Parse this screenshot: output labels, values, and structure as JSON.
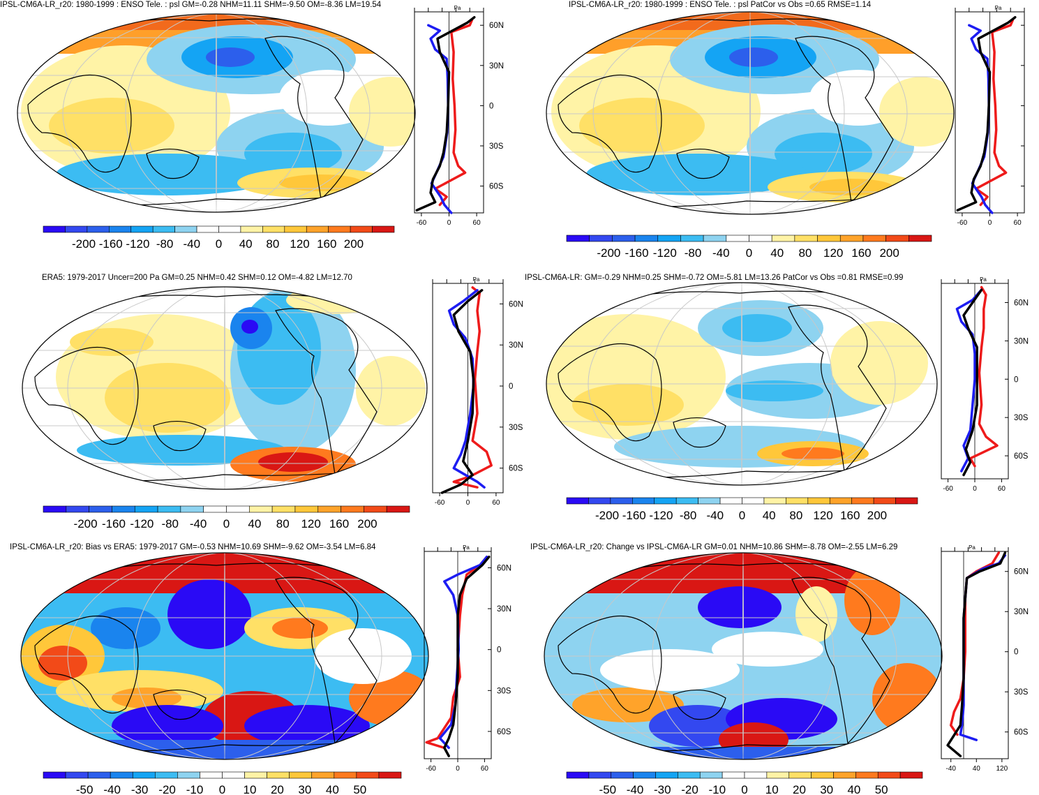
{
  "colors": {
    "psl": [
      "#2a0af5",
      "#3348f0",
      "#2c5fec",
      "#1a84ee",
      "#14a4f4",
      "#3cbcf2",
      "#8ed3f0",
      "#ffffff",
      "#ffffff",
      "#fff3a6",
      "#ffe066",
      "#ffc73a",
      "#ffa32a",
      "#ff7a1e",
      "#f24a18",
      "#d91714"
    ],
    "bias": [
      "#2a0af5",
      "#3348f0",
      "#2c5fec",
      "#1a84ee",
      "#14a4f4",
      "#3cbcf2",
      "#8ed3f0",
      "#ffffff",
      "#ffffff",
      "#fff3a6",
      "#ffe066",
      "#ffc73a",
      "#ffa32a",
      "#ff7a1e",
      "#f24a18",
      "#d91714"
    ],
    "obs_line": "#1d1df2",
    "model_line": "#ee1b1b",
    "mean_line": "#000000"
  },
  "panels": [
    {
      "id": "model-r20",
      "title": "IPSL-CM6A-LR_r20: 1980-1999 : ENSO Tele. : psl GM=-0.28 NHM=11.11 SHM=-9.50 OM=-8.36 LM=19.54",
      "colorbar": {
        "ticks": [
          "-200",
          "-160",
          "-120",
          "-80",
          "-40",
          "0",
          "40",
          "80",
          "120",
          "160",
          "200"
        ]
      },
      "profile": {
        "unit": "Pa",
        "xticks": [
          "-60",
          "0",
          "60"
        ],
        "xvals": [
          -60,
          0,
          60
        ],
        "xlim": [
          -75,
          75
        ],
        "lat_labels": [
          "60N",
          "30N",
          "0",
          "30S",
          "60S"
        ],
        "blue": [
          [
            -45,
            60
          ],
          [
            -20,
            56
          ],
          [
            -40,
            50
          ],
          [
            -30,
            42
          ],
          [
            -5,
            35
          ],
          [
            -3,
            20
          ],
          [
            -2,
            0
          ],
          [
            -4,
            -20
          ],
          [
            -12,
            -38
          ],
          [
            -30,
            -52
          ],
          [
            -38,
            -58
          ],
          [
            -18,
            -68
          ],
          [
            -10,
            -74
          ],
          [
            5,
            -80
          ]
        ],
        "red": [
          [
            50,
            64
          ],
          [
            45,
            60
          ],
          [
            5,
            55
          ],
          [
            10,
            40
          ],
          [
            8,
            20
          ],
          [
            12,
            0
          ],
          [
            14,
            -18
          ],
          [
            10,
            -35
          ],
          [
            20,
            -45
          ],
          [
            35,
            -50
          ],
          [
            -30,
            -62
          ],
          [
            -5,
            -68
          ],
          [
            -20,
            -74
          ]
        ],
        "black": [
          [
            55,
            66
          ],
          [
            40,
            62
          ],
          [
            -25,
            50
          ],
          [
            -20,
            40
          ],
          [
            0,
            25
          ],
          [
            -2,
            0
          ],
          [
            -5,
            -20
          ],
          [
            -12,
            -35
          ],
          [
            -20,
            -45
          ],
          [
            -35,
            -55
          ],
          [
            -40,
            -65
          ],
          [
            -30,
            -72
          ],
          [
            -70,
            -78
          ]
        ]
      }
    },
    {
      "id": "model-r20-patcor",
      "title": "IPSL-CM6A-LR_r20: 1980-1999 : ENSO Tele. : psl PatCor vs Obs =0.65 RMSE=1.14",
      "colorbar": {
        "ticks": [
          "-200",
          "-160",
          "-120",
          "-80",
          "-40",
          "0",
          "40",
          "80",
          "120",
          "160",
          "200"
        ]
      },
      "profile": {
        "unit": "Pa",
        "xticks": [
          "-60",
          "0",
          "60"
        ],
        "xvals": [
          -60,
          0,
          60
        ],
        "xlim": [
          -75,
          75
        ],
        "lat_labels": [],
        "blue": [
          [
            -45,
            60
          ],
          [
            -20,
            56
          ],
          [
            -40,
            50
          ],
          [
            -30,
            42
          ],
          [
            -5,
            35
          ],
          [
            -3,
            20
          ],
          [
            -2,
            0
          ],
          [
            -4,
            -20
          ],
          [
            -12,
            -38
          ],
          [
            -30,
            -52
          ],
          [
            -38,
            -58
          ],
          [
            -18,
            -68
          ],
          [
            -10,
            -74
          ],
          [
            5,
            -80
          ]
        ],
        "red": [
          [
            50,
            64
          ],
          [
            45,
            60
          ],
          [
            5,
            55
          ],
          [
            10,
            40
          ],
          [
            8,
            20
          ],
          [
            12,
            0
          ],
          [
            14,
            -18
          ],
          [
            10,
            -35
          ],
          [
            20,
            -45
          ],
          [
            35,
            -50
          ],
          [
            -30,
            -62
          ],
          [
            -5,
            -68
          ],
          [
            -20,
            -74
          ]
        ],
        "black": [
          [
            55,
            66
          ],
          [
            40,
            62
          ],
          [
            -25,
            50
          ],
          [
            -20,
            40
          ],
          [
            0,
            25
          ],
          [
            -2,
            0
          ],
          [
            -5,
            -20
          ],
          [
            -12,
            -35
          ],
          [
            -20,
            -45
          ],
          [
            -35,
            -55
          ],
          [
            -40,
            -65
          ],
          [
            -30,
            -72
          ],
          [
            -70,
            -78
          ]
        ]
      }
    },
    {
      "id": "era5",
      "title": "ERA5: 1979-2017 Uncer=200 Pa GM=0.25 NHM=0.42 SHM=0.12 OM=-4.82 LM=12.70",
      "colorbar": {
        "ticks": [
          "-200",
          "-160",
          "-120",
          "-80",
          "-40",
          "0",
          "40",
          "80",
          "120",
          "160",
          "200"
        ]
      },
      "profile": {
        "unit": "Pa",
        "xticks": [
          "-60",
          "0",
          "60"
        ],
        "xvals": [
          -60,
          0,
          60
        ],
        "xlim": [
          -75,
          75
        ],
        "lat_labels": [
          "60N",
          "30N",
          "0",
          "30S",
          "60S"
        ],
        "blue": [
          [
            20,
            70
          ],
          [
            -10,
            62
          ],
          [
            -40,
            55
          ],
          [
            -30,
            45
          ],
          [
            -5,
            35
          ],
          [
            10,
            20
          ],
          [
            12,
            0
          ],
          [
            5,
            -20
          ],
          [
            -5,
            -40
          ],
          [
            -15,
            -50
          ],
          [
            -30,
            -60
          ],
          [
            20,
            -70
          ],
          [
            35,
            -74
          ]
        ],
        "red": [
          [
            10,
            72
          ],
          [
            25,
            68
          ],
          [
            20,
            55
          ],
          [
            25,
            40
          ],
          [
            20,
            25
          ],
          [
            15,
            5
          ],
          [
            20,
            -20
          ],
          [
            10,
            -40
          ],
          [
            40,
            -48
          ],
          [
            50,
            -58
          ],
          [
            5,
            -66
          ],
          [
            -30,
            -70
          ],
          [
            20,
            -74
          ]
        ],
        "black": [
          [
            30,
            70
          ],
          [
            0,
            62
          ],
          [
            -30,
            52
          ],
          [
            -20,
            40
          ],
          [
            5,
            25
          ],
          [
            12,
            5
          ],
          [
            10,
            -20
          ],
          [
            0,
            -40
          ],
          [
            -10,
            -55
          ],
          [
            10,
            -65
          ],
          [
            -15,
            -72
          ],
          [
            -55,
            -78
          ]
        ]
      }
    },
    {
      "id": "model-ensemble",
      "title": "IPSL-CM6A-LR: GM=-0.29 NHM=0.25 SHM=-0.72 OM=-5.81 LM=13.26 PatCor vs Obs =0.81 RMSE=0.99",
      "colorbar": {
        "ticks": [
          "-200",
          "-160",
          "-120",
          "-80",
          "-40",
          "0",
          "40",
          "80",
          "120",
          "160",
          "200"
        ]
      },
      "profile": {
        "unit": "Pa",
        "xticks": [
          "-60",
          "0",
          "60"
        ],
        "xvals": [
          -60,
          0,
          60
        ],
        "xlim": [
          -75,
          75
        ],
        "lat_labels": [
          "60N",
          "30N",
          "0",
          "30S",
          "60S"
        ],
        "blue": [
          [
            15,
            70
          ],
          [
            -5,
            62
          ],
          [
            -40,
            55
          ],
          [
            -30,
            45
          ],
          [
            -5,
            35
          ],
          [
            0,
            20
          ],
          [
            0,
            0
          ],
          [
            -5,
            -20
          ],
          [
            -10,
            -40
          ],
          [
            -25,
            -52
          ],
          [
            -15,
            -62
          ],
          [
            -30,
            -72
          ]
        ],
        "red": [
          [
            15,
            72
          ],
          [
            25,
            66
          ],
          [
            20,
            55
          ],
          [
            20,
            40
          ],
          [
            15,
            25
          ],
          [
            10,
            5
          ],
          [
            15,
            -20
          ],
          [
            10,
            -35
          ],
          [
            25,
            -45
          ],
          [
            50,
            -52
          ],
          [
            -10,
            -62
          ],
          [
            0,
            -68
          ]
        ],
        "black": [
          [
            15,
            70
          ],
          [
            -5,
            60
          ],
          [
            -25,
            50
          ],
          [
            -15,
            40
          ],
          [
            5,
            25
          ],
          [
            5,
            5
          ],
          [
            5,
            -20
          ],
          [
            -5,
            -40
          ],
          [
            -20,
            -55
          ],
          [
            -10,
            -65
          ],
          [
            -25,
            -75
          ]
        ]
      }
    },
    {
      "id": "bias",
      "title": "IPSL-CM6A-LR_r20: Bias vs ERA5: 1979-2017 GM=-0.53 NHM=10.69 SHM=-9.62 OM=-3.54 LM=6.84",
      "colorbar": {
        "ticks": [
          "-50",
          "-40",
          "-30",
          "-20",
          "-10",
          "0",
          "10",
          "20",
          "30",
          "40",
          "50"
        ]
      },
      "profile": {
        "unit": "Pa",
        "xticks": [
          "-60",
          "0",
          "60"
        ],
        "xvals": [
          -60,
          0,
          60
        ],
        "xlim": [
          -75,
          75
        ],
        "lat_labels": [
          "60N",
          "30N",
          "0",
          "30S",
          "60S"
        ],
        "blue": [
          [
            65,
            68
          ],
          [
            50,
            62
          ],
          [
            0,
            55
          ],
          [
            -30,
            50
          ],
          [
            -10,
            40
          ],
          [
            0,
            25
          ],
          [
            2,
            0
          ],
          [
            -2,
            -20
          ],
          [
            -5,
            -40
          ],
          [
            -15,
            -55
          ],
          [
            -40,
            -65
          ],
          [
            -20,
            -72
          ]
        ],
        "red": [
          [
            65,
            68
          ],
          [
            50,
            62
          ],
          [
            20,
            55
          ],
          [
            10,
            40
          ],
          [
            5,
            25
          ],
          [
            0,
            0
          ],
          [
            5,
            -20
          ],
          [
            -10,
            -35
          ],
          [
            -15,
            -50
          ],
          [
            -45,
            -65
          ],
          [
            -70,
            -68
          ],
          [
            -30,
            -72
          ]
        ],
        "black": [
          [
            70,
            68
          ],
          [
            55,
            62
          ],
          [
            20,
            52
          ],
          [
            5,
            40
          ],
          [
            0,
            25
          ],
          [
            0,
            0
          ],
          [
            0,
            -20
          ],
          [
            -5,
            -40
          ],
          [
            -10,
            -55
          ],
          [
            -20,
            -65
          ],
          [
            -30,
            -72
          ],
          [
            -20,
            -78
          ]
        ]
      }
    },
    {
      "id": "change",
      "title": "IPSL-CM6A-LR_r20: Change vs IPSL-CM6A-LR GM=0.01 NHM=10.86 SHM=-8.78 OM=-2.55 LM=6.29",
      "colorbar": {
        "ticks": [
          "-50",
          "-40",
          "-30",
          "-20",
          "-10",
          "0",
          "10",
          "20",
          "30",
          "40",
          "50"
        ]
      },
      "profile": {
        "unit": "Pa",
        "xticks": [
          "-40",
          "40",
          "120"
        ],
        "xvals": [
          -40,
          40,
          120
        ],
        "xlim": [
          -70,
          140
        ],
        "lat_labels": [
          "60N",
          "30N",
          "0",
          "30S",
          "60S"
        ],
        "blue": [
          [
            130,
            72
          ],
          [
            110,
            66
          ],
          [
            60,
            62
          ],
          [
            10,
            55
          ],
          [
            5,
            40
          ],
          [
            0,
            25
          ],
          [
            0,
            0
          ],
          [
            0,
            -20
          ],
          [
            0,
            -40
          ],
          [
            -5,
            -55
          ],
          [
            -10,
            -62
          ],
          [
            40,
            -66
          ]
        ],
        "red": [
          [
            110,
            74
          ],
          [
            90,
            66
          ],
          [
            40,
            60
          ],
          [
            10,
            55
          ],
          [
            5,
            40
          ],
          [
            5,
            25
          ],
          [
            5,
            0
          ],
          [
            0,
            -20
          ],
          [
            -10,
            -35
          ],
          [
            -30,
            -45
          ],
          [
            -40,
            -55
          ],
          [
            -20,
            -62
          ]
        ],
        "black": [
          [
            130,
            74
          ],
          [
            115,
            66
          ],
          [
            50,
            60
          ],
          [
            10,
            55
          ],
          [
            5,
            40
          ],
          [
            0,
            25
          ],
          [
            0,
            0
          ],
          [
            0,
            -20
          ],
          [
            -5,
            -40
          ],
          [
            -10,
            -55
          ],
          [
            -50,
            -70
          ],
          [
            -10,
            -78
          ]
        ]
      }
    }
  ]
}
